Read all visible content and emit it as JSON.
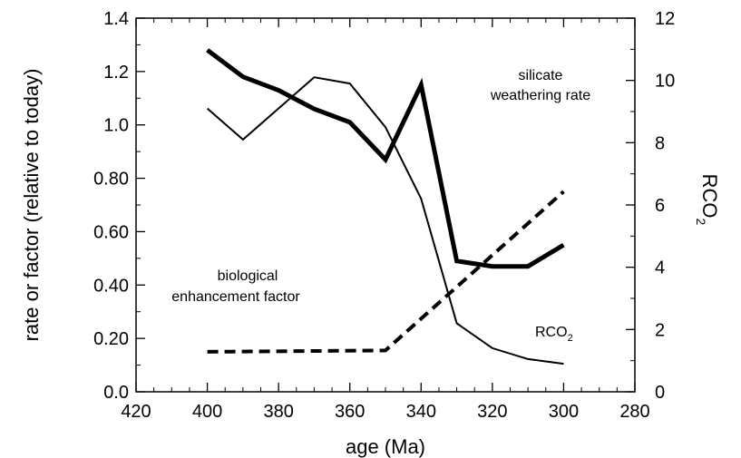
{
  "chart_data": {
    "type": "line",
    "xlabel": "age (Ma)",
    "ylabel": "rate or factor (relative to today)",
    "y2label": "RCO",
    "y2label_sub": "2",
    "xlim": [
      420,
      280
    ],
    "ylim": [
      0,
      1.4
    ],
    "y2lim": [
      0,
      12
    ],
    "x_ticks": [
      420,
      400,
      380,
      360,
      340,
      320,
      300,
      280
    ],
    "y_ticks": [
      "0.0",
      "0.20",
      "0.40",
      "0.60",
      "0.80",
      "1.0",
      "1.2",
      "1.4"
    ],
    "y2_ticks": [
      "0",
      "2",
      "4",
      "6",
      "8",
      "10",
      "12"
    ],
    "series": [
      {
        "name": "silicate weathering rate",
        "axis": "left",
        "style": "thick",
        "x": [
          400,
          390,
          380,
          370,
          360,
          350,
          340,
          330,
          320,
          310,
          300
        ],
        "y": [
          1.28,
          1.18,
          1.13,
          1.06,
          1.01,
          0.87,
          1.15,
          0.49,
          0.47,
          0.47,
          0.55
        ]
      },
      {
        "name": "RCO2",
        "axis": "right",
        "style": "thin",
        "x": [
          400,
          390,
          370,
          360,
          350,
          340,
          330,
          320,
          310,
          300
        ],
        "y": [
          9.1,
          8.1,
          10.1,
          9.9,
          8.5,
          6.2,
          2.2,
          1.4,
          1.05,
          0.9
        ]
      },
      {
        "name": "biological enhancement factor",
        "axis": "left",
        "style": "dashed",
        "x": [
          400,
          350,
          300
        ],
        "y": [
          0.15,
          0.155,
          0.75
        ]
      }
    ],
    "annotations": {
      "silicate_line1": "silicate",
      "silicate_line2": "weathering rate",
      "bio_line1": "biological",
      "bio_line2": "enhancement factor",
      "rco2_text": "RCO",
      "rco2_sub": "2"
    }
  }
}
